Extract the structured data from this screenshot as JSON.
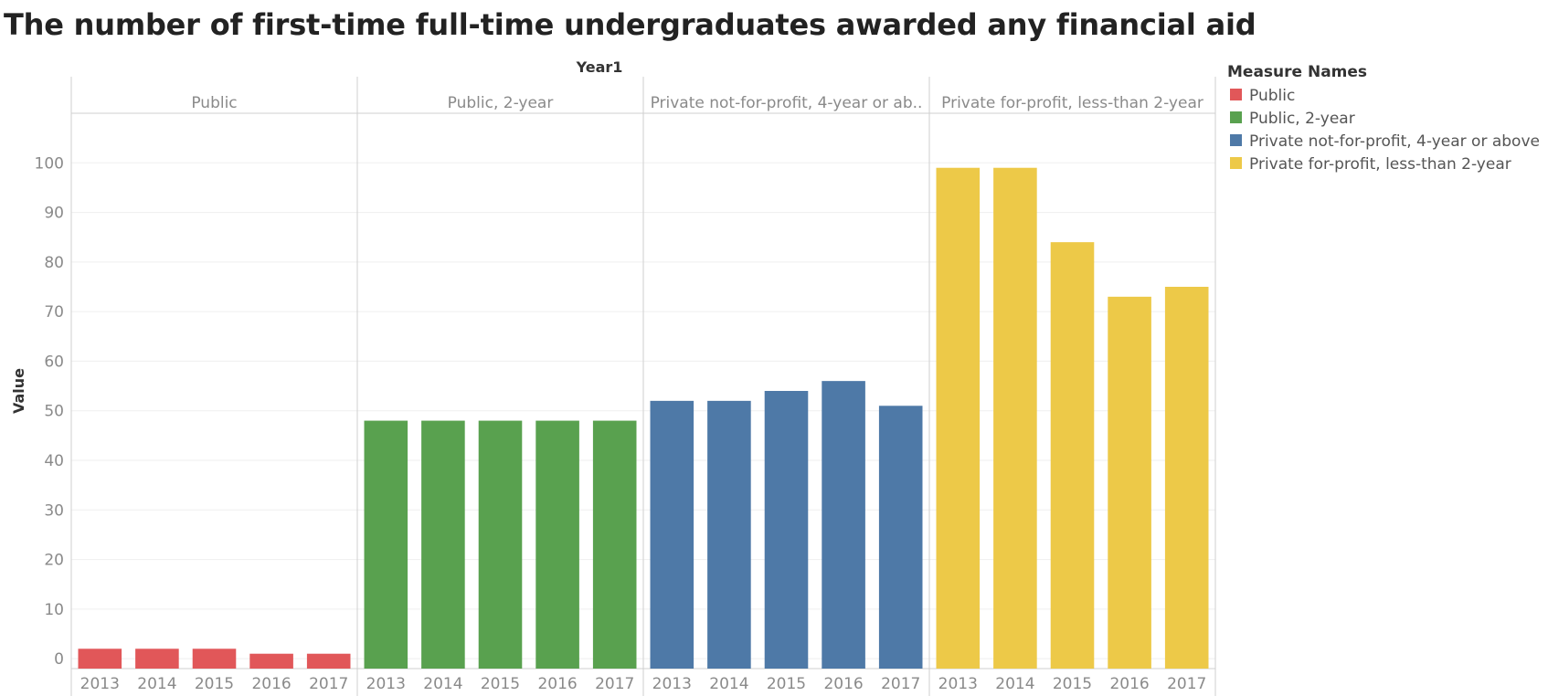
{
  "chart_data": {
    "type": "bar",
    "title": "The number of first-time full-time undergraduates awarded any financial aid",
    "column_header": "Year1",
    "ylabel": "Value",
    "ylim": [
      -2,
      110
    ],
    "yticks": [
      0,
      10,
      20,
      30,
      40,
      50,
      60,
      70,
      80,
      90,
      100
    ],
    "grid": true,
    "categories": [
      "2013",
      "2014",
      "2015",
      "2016",
      "2017"
    ],
    "legend": {
      "title": "Measure Names",
      "position": "right"
    },
    "series": [
      {
        "name": "Public",
        "panel_label": "Public",
        "color": "#e15759",
        "values": [
          2,
          2,
          2,
          1,
          1
        ]
      },
      {
        "name": "Public, 2-year",
        "panel_label": "Public, 2-year",
        "color": "#59a14f",
        "values": [
          48,
          48,
          48,
          48,
          48
        ]
      },
      {
        "name": "Private not-for-profit, 4-year or above",
        "panel_label": "Private not-for-profit, 4-year or ab..",
        "color": "#4e79a7",
        "values": [
          52,
          52,
          54,
          56,
          51
        ]
      },
      {
        "name": "Private for-profit, less-than 2-year",
        "panel_label": "Private for-profit, less-than 2-year",
        "color": "#edc948",
        "values": [
          99,
          99,
          84,
          73,
          75
        ]
      }
    ]
  }
}
